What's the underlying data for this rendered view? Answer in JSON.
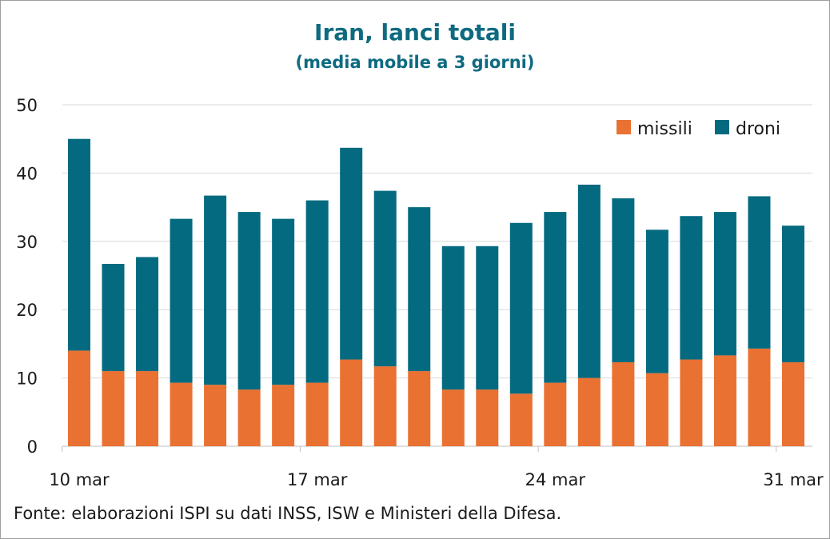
{
  "chart_data": {
    "type": "bar",
    "stacked": true,
    "title": "Iran, lanci totali",
    "subtitle": "(media mobile a 3 giorni)",
    "categories": [
      "10 mar",
      "11 mar",
      "12 mar",
      "13 mar",
      "14 mar",
      "15 mar",
      "16 mar",
      "17 mar",
      "18 mar",
      "19 mar",
      "20 mar",
      "21 mar",
      "22 mar",
      "23 mar",
      "24 mar",
      "25 mar",
      "26 mar",
      "27 mar",
      "28 mar",
      "29 mar",
      "30 mar",
      "31 mar"
    ],
    "x_tick_labels": [
      "10 mar",
      "17 mar",
      "24 mar",
      "31 mar"
    ],
    "y_ticks": [
      "0",
      "10",
      "20",
      "30",
      "40",
      "50"
    ],
    "ylim": [
      0,
      50
    ],
    "grid": true,
    "legend_position": "top-right",
    "series": [
      {
        "name": "missili",
        "color": "#e97132",
        "values": [
          14,
          11,
          11,
          9.3,
          9,
          8.3,
          9,
          9.3,
          12.7,
          11.7,
          11,
          8.3,
          8.3,
          7.7,
          9.3,
          10,
          12.3,
          10.7,
          12.7,
          13.3,
          14.3,
          12.3
        ]
      },
      {
        "name": "droni",
        "color": "#046a80",
        "values": [
          31,
          15.7,
          16.7,
          24,
          27.7,
          26,
          24.3,
          26.7,
          31,
          25.7,
          24,
          21,
          21,
          25,
          25,
          28.3,
          24,
          21,
          21,
          21,
          22.3,
          20
        ]
      }
    ],
    "source": "Fonte: elaborazioni ISPI su dati INSS, ISW e Ministeri della Difesa."
  }
}
